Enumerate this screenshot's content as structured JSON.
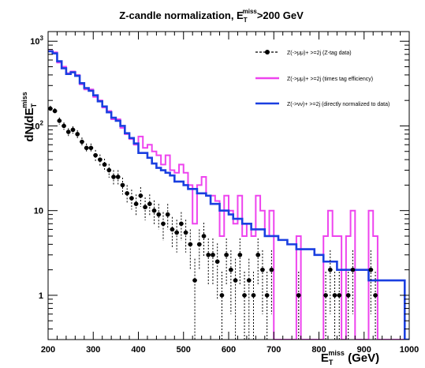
{
  "chart_data": {
    "type": "line",
    "title": {
      "main": "Z-candle normalization, E",
      "sub": "T",
      "sup": "miss",
      "tail": ">200 GeV"
    },
    "xlabel": {
      "main": "E",
      "sub": "T",
      "sup": "miss",
      "tail": " (GeV)"
    },
    "ylabel": {
      "main": "dN/dE",
      "sub": "T",
      "sup": "miss"
    },
    "xlim": [
      200,
      1000
    ],
    "ylim": [
      0.3,
      1300
    ],
    "yscale": "log",
    "bin_width": 10,
    "x_ticks": [
      "200",
      "300",
      "400",
      "500",
      "600",
      "700",
      "800",
      "900",
      "1000"
    ],
    "y_ticks": [
      {
        "value": 1,
        "label": "1"
      },
      {
        "value": 10,
        "label": "10"
      },
      {
        "value": 100,
        "label": "10",
        "sup": "2"
      },
      {
        "value": 1000,
        "label": "10",
        "sup": "3"
      }
    ],
    "legend_position": "top-right",
    "series": [
      {
        "name": "Z(->μμ)+ >=2j (Z-tag data)",
        "style": "points-dashed",
        "color": "#000000",
        "x": [
          205,
          215,
          225,
          235,
          245,
          255,
          265,
          275,
          285,
          295,
          305,
          315,
          325,
          335,
          345,
          355,
          365,
          375,
          385,
          395,
          405,
          415,
          425,
          435,
          445,
          455,
          465,
          475,
          485,
          495,
          505,
          515,
          525,
          535,
          545,
          555,
          565,
          575,
          585,
          595,
          605,
          615,
          625,
          635,
          645,
          655,
          665,
          675,
          685,
          695,
          705,
          715,
          725,
          735,
          745,
          755,
          765,
          775,
          785,
          795,
          805,
          815,
          825,
          835,
          845,
          855,
          865,
          875,
          885,
          895,
          905,
          915,
          925,
          935,
          945,
          955,
          965,
          975,
          985,
          995
        ],
        "values": [
          160,
          150,
          115,
          100,
          85,
          90,
          80,
          65,
          55,
          55,
          45,
          40,
          35,
          30,
          25,
          25,
          20,
          16,
          14,
          12,
          15,
          11,
          12,
          10,
          9,
          7,
          9,
          6,
          5.5,
          7,
          5.5,
          4,
          1.5,
          4,
          5,
          3,
          3,
          2.5,
          1,
          3,
          2,
          1.5,
          3,
          1,
          1.5,
          1,
          3,
          2,
          1,
          2,
          0,
          0,
          0,
          0,
          0,
          1,
          0,
          0,
          0,
          0,
          0,
          1,
          2,
          1,
          1,
          0,
          1,
          2,
          0,
          0,
          0,
          2,
          1,
          0,
          0,
          0,
          0,
          0,
          0,
          0
        ],
        "errors": [
          13,
          12,
          11,
          10,
          9,
          9,
          9,
          8,
          7,
          7,
          7,
          6,
          6,
          5.5,
          5,
          5,
          4.5,
          4,
          3.7,
          3.5,
          3.9,
          3.3,
          3.5,
          3.2,
          3,
          2.6,
          3,
          2.4,
          2.3,
          2.6,
          2.3,
          2,
          1.2,
          2,
          2.2,
          1.7,
          1.7,
          1.6,
          0.9,
          1.7,
          1.4,
          1.2,
          1.7,
          0.9,
          1.2,
          0.9,
          1.7,
          1.4,
          0.9,
          1.4,
          0,
          0,
          0,
          0,
          0,
          0.9,
          0,
          0,
          0,
          0,
          0,
          0.9,
          1.4,
          0.9,
          0.9,
          0,
          0.9,
          1.4,
          0,
          0,
          0,
          1.4,
          0.9,
          0,
          0,
          0,
          0,
          0,
          0,
          0
        ]
      },
      {
        "name": "Z(->μμ)+ >=2j (times tag efficiency)",
        "style": "step",
        "color": "#ee44ee",
        "x": [
          205,
          215,
          225,
          235,
          245,
          255,
          265,
          275,
          285,
          295,
          305,
          315,
          325,
          335,
          345,
          355,
          365,
          375,
          385,
          395,
          405,
          415,
          425,
          435,
          445,
          455,
          465,
          475,
          485,
          495,
          505,
          515,
          525,
          535,
          545,
          555,
          565,
          575,
          585,
          595,
          605,
          615,
          625,
          635,
          645,
          655,
          665,
          675,
          685,
          695,
          705,
          715,
          725,
          735,
          745,
          755,
          765,
          775,
          785,
          795,
          805,
          815,
          825,
          835,
          845,
          855,
          865,
          875,
          885,
          895,
          905,
          915,
          925,
          935,
          945,
          955,
          965,
          975,
          985,
          995
        ],
        "values": [
          770,
          740,
          560,
          500,
          420,
          440,
          400,
          310,
          270,
          270,
          220,
          200,
          165,
          150,
          120,
          120,
          95,
          80,
          70,
          60,
          75,
          55,
          60,
          50,
          45,
          35,
          45,
          30,
          28,
          35,
          28,
          20,
          7,
          20,
          25,
          15,
          15,
          13,
          5,
          15,
          10,
          7,
          15,
          5,
          7,
          5,
          15,
          10,
          5,
          10,
          0,
          0,
          0,
          0,
          0,
          5,
          0,
          0,
          0,
          0,
          0,
          5,
          10,
          5,
          5,
          0,
          5,
          10,
          0,
          0,
          0,
          10,
          5,
          0,
          0,
          0,
          0,
          0,
          0,
          0
        ]
      },
      {
        "name": "Z(->νν)+ >=2j (directly normalized to data)",
        "style": "step",
        "color": "#1a3fe0",
        "x": [
          205,
          215,
          225,
          235,
          245,
          255,
          265,
          275,
          285,
          295,
          305,
          315,
          325,
          335,
          345,
          355,
          365,
          375,
          385,
          395,
          405,
          415,
          425,
          435,
          445,
          455,
          465,
          475,
          485,
          495,
          505,
          515,
          525,
          535,
          545,
          555,
          565,
          575,
          585,
          595,
          605,
          615,
          625,
          635,
          645,
          655,
          665,
          675,
          685,
          695,
          705,
          715,
          725,
          735,
          745,
          755,
          765,
          775,
          785,
          795,
          805,
          815,
          825,
          835,
          845,
          855,
          865,
          875,
          885,
          895,
          905,
          915,
          925,
          935,
          945,
          955,
          965,
          975,
          985,
          995
        ],
        "values": [
          760,
          720,
          580,
          480,
          410,
          430,
          390,
          320,
          280,
          260,
          230,
          195,
          170,
          145,
          125,
          115,
          100,
          82,
          72,
          62,
          48,
          48,
          42,
          36,
          32,
          30,
          28,
          26,
          22,
          22,
          20,
          18,
          18,
          16,
          16,
          15,
          12,
          12,
          10,
          10,
          9,
          8,
          8,
          7,
          7,
          6,
          6,
          6,
          5,
          5,
          5,
          4.5,
          4.5,
          4,
          4,
          3.5,
          3.5,
          3.5,
          3.5,
          3,
          3,
          2.5,
          2.5,
          2.5,
          2,
          2,
          2,
          2,
          2,
          2,
          2,
          1.5,
          1.5,
          1.5,
          1.5,
          1.5,
          1.5,
          1.5,
          1.5,
          0
        ]
      }
    ]
  }
}
